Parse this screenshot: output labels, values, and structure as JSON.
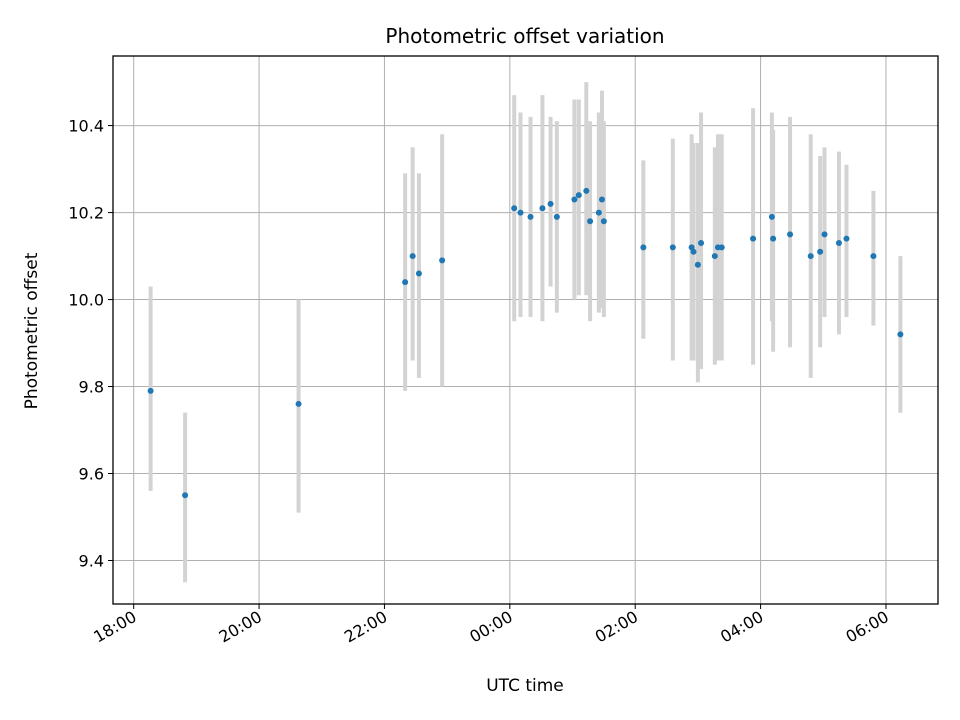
{
  "chart_data": {
    "type": "scatter",
    "title": "Photometric offset variation",
    "xlabel": "UTC time",
    "ylabel": "Photometric offset",
    "x_unit": "UTC hours (continuous across midnight; values >24 are next day)",
    "xlim": [
      17.67,
      30.83
    ],
    "ylim": [
      9.3,
      10.56
    ],
    "x_ticks": [
      {
        "hour": 18,
        "label": "18:00"
      },
      {
        "hour": 20,
        "label": "20:00"
      },
      {
        "hour": 22,
        "label": "22:00"
      },
      {
        "hour": 24,
        "label": "00:00"
      },
      {
        "hour": 26,
        "label": "02:00"
      },
      {
        "hour": 28,
        "label": "04:00"
      },
      {
        "hour": 30,
        "label": "06:00"
      }
    ],
    "y_ticks": [
      9.4,
      9.6,
      9.8,
      10.0,
      10.2,
      10.4
    ],
    "grid": true,
    "point_color": "#1f77b4",
    "errorbar_color": "#d3d3d3",
    "points": [
      {
        "t": 18.27,
        "y": 9.79,
        "lo": 9.56,
        "hi": 10.03
      },
      {
        "t": 18.82,
        "y": 9.55,
        "lo": 9.35,
        "hi": 9.74
      },
      {
        "t": 20.63,
        "y": 9.76,
        "lo": 9.51,
        "hi": 10.0
      },
      {
        "t": 22.33,
        "y": 10.04,
        "lo": 9.79,
        "hi": 10.29
      },
      {
        "t": 22.45,
        "y": 10.1,
        "lo": 9.86,
        "hi": 10.35
      },
      {
        "t": 22.55,
        "y": 10.06,
        "lo": 9.82,
        "hi": 10.29
      },
      {
        "t": 22.92,
        "y": 10.09,
        "lo": 9.8,
        "hi": 10.38
      },
      {
        "t": 24.07,
        "y": 10.21,
        "lo": 9.95,
        "hi": 10.47
      },
      {
        "t": 24.17,
        "y": 10.2,
        "lo": 9.96,
        "hi": 10.43
      },
      {
        "t": 24.33,
        "y": 10.19,
        "lo": 9.96,
        "hi": 10.42
      },
      {
        "t": 24.52,
        "y": 10.21,
        "lo": 9.95,
        "hi": 10.47
      },
      {
        "t": 24.65,
        "y": 10.22,
        "lo": 10.03,
        "hi": 10.42
      },
      {
        "t": 24.75,
        "y": 10.19,
        "lo": 9.97,
        "hi": 10.41
      },
      {
        "t": 25.03,
        "y": 10.23,
        "lo": 10.0,
        "hi": 10.46
      },
      {
        "t": 25.1,
        "y": 10.24,
        "lo": 10.01,
        "hi": 10.46
      },
      {
        "t": 25.22,
        "y": 10.25,
        "lo": 10.01,
        "hi": 10.5
      },
      {
        "t": 25.28,
        "y": 10.18,
        "lo": 9.95,
        "hi": 10.41
      },
      {
        "t": 25.42,
        "y": 10.2,
        "lo": 9.97,
        "hi": 10.43
      },
      {
        "t": 25.47,
        "y": 10.23,
        "lo": 9.98,
        "hi": 10.48
      },
      {
        "t": 25.5,
        "y": 10.18,
        "lo": 9.96,
        "hi": 10.41
      },
      {
        "t": 26.13,
        "y": 10.12,
        "lo": 9.91,
        "hi": 10.32
      },
      {
        "t": 26.6,
        "y": 10.12,
        "lo": 9.86,
        "hi": 10.37
      },
      {
        "t": 26.9,
        "y": 10.12,
        "lo": 9.86,
        "hi": 10.38
      },
      {
        "t": 26.93,
        "y": 10.11,
        "lo": 9.86,
        "hi": 10.36
      },
      {
        "t": 27.0,
        "y": 10.08,
        "lo": 9.81,
        "hi": 10.36
      },
      {
        "t": 27.05,
        "y": 10.13,
        "lo": 9.84,
        "hi": 10.43
      },
      {
        "t": 27.27,
        "y": 10.1,
        "lo": 9.85,
        "hi": 10.35
      },
      {
        "t": 27.32,
        "y": 10.12,
        "lo": 9.86,
        "hi": 10.38
      },
      {
        "t": 27.38,
        "y": 10.12,
        "lo": 9.86,
        "hi": 10.38
      },
      {
        "t": 27.88,
        "y": 10.14,
        "lo": 9.85,
        "hi": 10.44
      },
      {
        "t": 28.18,
        "y": 10.19,
        "lo": 9.95,
        "hi": 10.43
      },
      {
        "t": 28.2,
        "y": 10.14,
        "lo": 9.88,
        "hi": 10.39
      },
      {
        "t": 28.47,
        "y": 10.15,
        "lo": 9.89,
        "hi": 10.42
      },
      {
        "t": 28.8,
        "y": 10.1,
        "lo": 9.82,
        "hi": 10.38
      },
      {
        "t": 28.95,
        "y": 10.11,
        "lo": 9.89,
        "hi": 10.33
      },
      {
        "t": 29.02,
        "y": 10.15,
        "lo": 9.96,
        "hi": 10.35
      },
      {
        "t": 29.25,
        "y": 10.13,
        "lo": 9.92,
        "hi": 10.34
      },
      {
        "t": 29.37,
        "y": 10.14,
        "lo": 9.96,
        "hi": 10.31
      },
      {
        "t": 29.8,
        "y": 10.1,
        "lo": 9.94,
        "hi": 10.25
      },
      {
        "t": 30.23,
        "y": 9.92,
        "lo": 9.74,
        "hi": 10.1
      }
    ]
  }
}
